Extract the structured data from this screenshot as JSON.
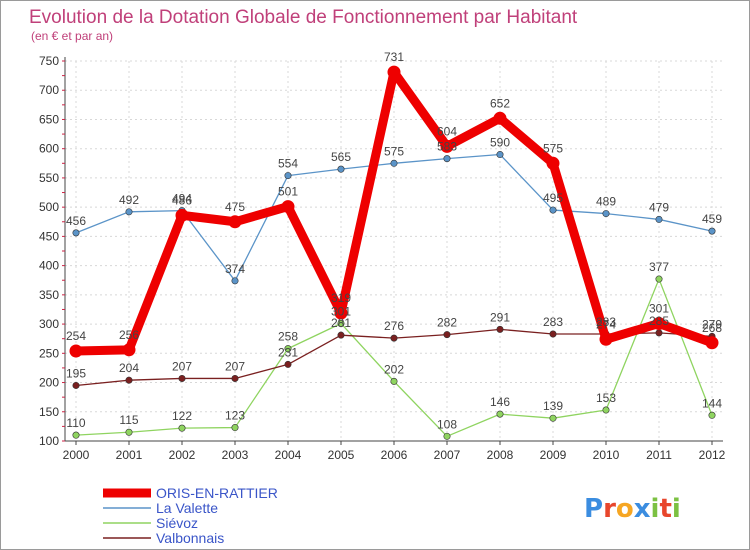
{
  "chart_data": {
    "type": "line",
    "title": "Evolution de la Dotation Globale de Fonctionnement par Habitant",
    "subtitle": "(en € et par an)",
    "x": [
      "2000",
      "2001",
      "2002",
      "2003",
      "2004",
      "2005",
      "2006",
      "2007",
      "2008",
      "2009",
      "2010",
      "2011",
      "2012"
    ],
    "ylim": [
      100,
      750
    ],
    "yticks": [
      100,
      150,
      200,
      250,
      300,
      350,
      400,
      450,
      500,
      550,
      600,
      650,
      700,
      750
    ],
    "grid": true,
    "legend_position": "bottom-left",
    "series": [
      {
        "name": "ORIS-EN-RATTIER",
        "color": "#ee0000",
        "values": [
          254,
          256,
          486,
          475,
          501,
          319,
          731,
          604,
          652,
          575,
          274,
          301,
          268
        ]
      },
      {
        "name": "La Valette",
        "color": "#5b94c8",
        "values": [
          456,
          492,
          494,
          374,
          554,
          565,
          575,
          583,
          590,
          495,
          489,
          479,
          459
        ]
      },
      {
        "name": "Siévoz",
        "color": "#8fd460",
        "values": [
          110,
          115,
          122,
          123,
          258,
          301,
          202,
          108,
          146,
          139,
          153,
          377,
          144
        ]
      },
      {
        "name": "Valbonnais",
        "color": "#7a2020",
        "values": [
          195,
          204,
          207,
          207,
          231,
          281,
          276,
          282,
          291,
          283,
          283,
          285,
          279
        ]
      }
    ]
  },
  "logo": {
    "text": "Proxiti",
    "letters": [
      "P",
      "r",
      "o",
      "x",
      "i",
      "t",
      "i"
    ],
    "colors": [
      "#3b8de0",
      "#e8462c",
      "#f6a623",
      "#3b8de0",
      "#7cc142",
      "#e8462c",
      "#7cc142"
    ]
  }
}
